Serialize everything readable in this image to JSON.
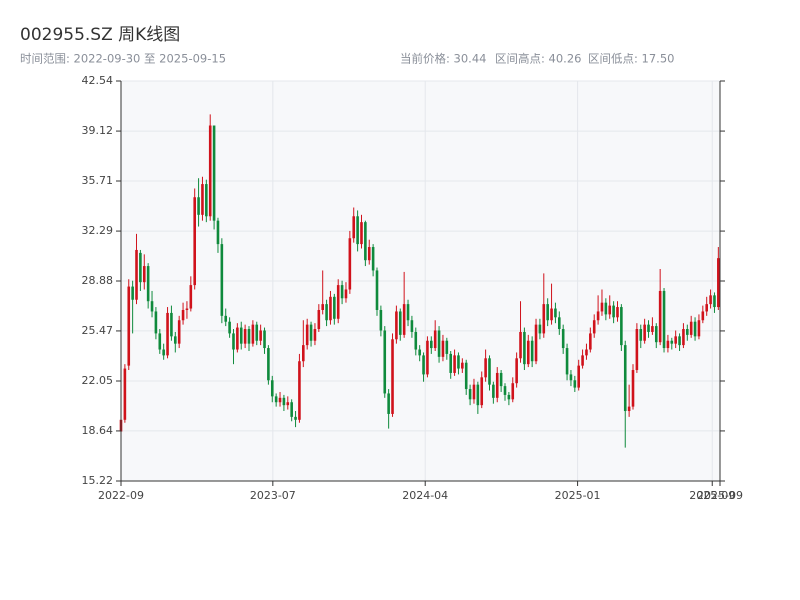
{
  "chart_data": {
    "type": "candlestick",
    "title": "002955.SZ 周K线图",
    "subtitle": "时间范围: 2022-09-30 至 2025-09-15",
    "stats": [
      "当前价格: 30.44",
      "区间高点: 40.26",
      "区间低点: 17.50"
    ],
    "up_color": "#d0121b",
    "down_color": "#0f8a3c",
    "grid": true,
    "ylim": [
      15.22,
      42.54
    ],
    "yticks": [
      15.22,
      18.64,
      22.05,
      25.47,
      28.88,
      32.29,
      35.71,
      39.12,
      42.54
    ],
    "xlim": [
      "2022-09-30",
      "2025-09-15"
    ],
    "xticks": [
      {
        "value": "2022-09-30",
        "label": "2022-09"
      },
      {
        "value": "2023-07-01",
        "label": "2023-07"
      },
      {
        "value": "2024-04-01",
        "label": "2024-04"
      },
      {
        "value": "2025-01-01",
        "label": "2025-01"
      },
      {
        "value": "2025-09-01",
        "label": "2025-09"
      },
      {
        "value": "2025-09-15",
        "label": "2025-09"
      }
    ],
    "x": [
      "2022-09-30",
      "2022-10-07",
      "2022-10-14",
      "2022-10-21",
      "2022-10-28",
      "2022-11-04",
      "2022-11-11",
      "2022-11-18",
      "2022-11-25",
      "2022-12-02",
      "2022-12-09",
      "2022-12-16",
      "2022-12-23",
      "2022-12-30",
      "2023-01-06",
      "2023-01-13",
      "2023-01-20",
      "2023-01-27",
      "2023-02-03",
      "2023-02-10",
      "2023-02-17",
      "2023-02-24",
      "2023-03-03",
      "2023-03-10",
      "2023-03-17",
      "2023-03-24",
      "2023-03-31",
      "2023-04-07",
      "2023-04-14",
      "2023-04-21",
      "2023-04-28",
      "2023-05-05",
      "2023-05-12",
      "2023-05-19",
      "2023-05-26",
      "2023-06-02",
      "2023-06-09",
      "2023-06-16",
      "2023-06-23",
      "2023-06-30",
      "2023-07-07",
      "2023-07-14",
      "2023-07-21",
      "2023-07-28",
      "2023-08-04",
      "2023-08-11",
      "2023-08-18",
      "2023-08-25",
      "2023-09-01",
      "2023-09-08",
      "2023-09-15",
      "2023-09-22",
      "2023-09-29",
      "2023-10-06",
      "2023-10-13",
      "2023-10-20",
      "2023-10-27",
      "2023-11-03",
      "2023-11-10",
      "2023-11-17",
      "2023-11-24",
      "2023-12-01",
      "2023-12-08",
      "2023-12-15",
      "2023-12-22",
      "2023-12-29",
      "2024-01-05",
      "2024-01-12",
      "2024-01-19",
      "2024-01-26",
      "2024-02-02",
      "2024-02-09",
      "2024-02-16",
      "2024-02-23",
      "2024-03-01",
      "2024-03-08",
      "2024-03-15",
      "2024-03-22",
      "2024-03-29",
      "2024-04-05",
      "2024-04-12",
      "2024-04-19",
      "2024-04-26",
      "2024-05-03",
      "2024-05-10",
      "2024-05-17",
      "2024-05-24",
      "2024-05-31",
      "2024-06-07",
      "2024-06-14",
      "2024-06-21",
      "2024-06-28",
      "2024-07-05",
      "2024-07-12",
      "2024-07-19",
      "2024-07-26",
      "2024-08-02",
      "2024-08-09",
      "2024-08-16",
      "2024-08-23",
      "2024-08-30",
      "2024-09-06",
      "2024-09-13",
      "2024-09-20",
      "2024-09-27",
      "2024-10-04",
      "2024-10-11",
      "2024-10-18",
      "2024-10-25",
      "2024-11-01",
      "2024-11-08",
      "2024-11-15",
      "2024-11-22",
      "2024-11-29",
      "2024-12-06",
      "2024-12-13",
      "2024-12-20",
      "2024-12-27",
      "2025-01-03",
      "2025-01-10",
      "2025-01-17",
      "2025-01-24",
      "2025-01-31",
      "2025-02-07",
      "2025-02-14",
      "2025-02-21",
      "2025-02-28",
      "2025-03-07",
      "2025-03-14",
      "2025-03-21",
      "2025-03-28",
      "2025-04-04",
      "2025-04-11",
      "2025-04-18",
      "2025-04-25",
      "2025-05-02",
      "2025-05-09",
      "2025-05-16",
      "2025-05-23",
      "2025-05-30",
      "2025-06-06",
      "2025-06-13",
      "2025-06-20",
      "2025-06-27",
      "2025-07-04",
      "2025-07-11",
      "2025-07-18",
      "2025-07-25",
      "2025-08-01",
      "2025-08-08",
      "2025-08-15",
      "2025-08-22",
      "2025-08-29",
      "2025-09-05",
      "2025-09-12"
    ],
    "ohlc": [
      [
        18.6,
        19.8,
        17.9,
        19.4
      ],
      [
        19.4,
        23.2,
        19.2,
        22.9
      ],
      [
        23.1,
        29.0,
        22.8,
        28.5
      ],
      [
        28.5,
        28.9,
        25.3,
        27.6
      ],
      [
        27.6,
        32.1,
        27.3,
        31.0
      ],
      [
        30.8,
        31.0,
        28.2,
        28.8
      ],
      [
        28.8,
        30.7,
        28.3,
        29.9
      ],
      [
        29.9,
        30.1,
        27.0,
        27.5
      ],
      [
        27.5,
        28.2,
        26.4,
        26.8
      ],
      [
        26.8,
        27.1,
        24.9,
        25.3
      ],
      [
        25.3,
        25.6,
        23.9,
        24.2
      ],
      [
        24.2,
        24.6,
        23.5,
        23.8
      ],
      [
        23.8,
        27.1,
        23.6,
        26.7
      ],
      [
        26.7,
        27.2,
        24.8,
        25.1
      ],
      [
        25.1,
        25.4,
        24.0,
        24.6
      ],
      [
        24.6,
        26.5,
        24.3,
        26.2
      ],
      [
        26.2,
        27.4,
        25.9,
        26.9
      ],
      [
        26.9,
        27.5,
        26.3,
        27.0
      ],
      [
        27.0,
        29.2,
        26.8,
        28.6
      ],
      [
        28.6,
        35.2,
        28.3,
        34.6
      ],
      [
        34.6,
        35.9,
        32.6,
        33.4
      ],
      [
        33.4,
        36.0,
        33.0,
        35.5
      ],
      [
        35.5,
        35.8,
        32.9,
        33.3
      ],
      [
        33.3,
        40.26,
        33.0,
        39.5
      ],
      [
        39.5,
        39.5,
        32.4,
        33.0
      ],
      [
        33.0,
        33.2,
        30.8,
        31.4
      ],
      [
        31.4,
        31.8,
        26.0,
        26.5
      ],
      [
        26.5,
        27.0,
        25.8,
        26.1
      ],
      [
        26.1,
        26.4,
        25.0,
        25.3
      ],
      [
        25.3,
        25.6,
        23.2,
        24.2
      ],
      [
        24.2,
        26.0,
        24.0,
        25.7
      ],
      [
        25.7,
        26.1,
        24.2,
        24.6
      ],
      [
        24.6,
        25.9,
        24.3,
        25.6
      ],
      [
        25.6,
        25.8,
        24.1,
        24.6
      ],
      [
        24.6,
        26.2,
        24.4,
        25.9
      ],
      [
        25.9,
        26.1,
        24.5,
        24.8
      ],
      [
        24.8,
        25.9,
        24.5,
        25.5
      ],
      [
        25.5,
        25.7,
        23.9,
        24.3
      ],
      [
        24.3,
        24.5,
        21.8,
        22.1
      ],
      [
        22.1,
        22.4,
        20.6,
        21.0
      ],
      [
        21.0,
        21.2,
        20.3,
        20.6
      ],
      [
        20.6,
        21.3,
        20.3,
        20.9
      ],
      [
        20.9,
        21.1,
        20.0,
        20.4
      ],
      [
        20.4,
        21.0,
        20.1,
        20.6
      ],
      [
        20.6,
        20.8,
        19.3,
        19.6
      ],
      [
        19.6,
        20.0,
        18.9,
        19.4
      ],
      [
        19.4,
        23.9,
        19.2,
        23.4
      ],
      [
        23.4,
        26.2,
        23.0,
        24.5
      ],
      [
        24.5,
        26.3,
        24.2,
        25.9
      ],
      [
        25.9,
        26.1,
        24.4,
        24.8
      ],
      [
        24.8,
        26.0,
        24.5,
        25.6
      ],
      [
        25.6,
        27.3,
        25.4,
        26.9
      ],
      [
        26.9,
        29.6,
        26.6,
        27.3
      ],
      [
        27.3,
        27.6,
        25.8,
        26.2
      ],
      [
        26.2,
        28.2,
        25.9,
        27.8
      ],
      [
        27.8,
        28.0,
        25.9,
        26.3
      ],
      [
        26.3,
        29.0,
        26.0,
        28.6
      ],
      [
        28.6,
        28.9,
        27.3,
        27.7
      ],
      [
        27.7,
        28.8,
        27.4,
        28.3
      ],
      [
        28.3,
        32.3,
        28.0,
        31.8
      ],
      [
        31.8,
        33.9,
        31.5,
        33.3
      ],
      [
        33.3,
        33.7,
        30.9,
        31.4
      ],
      [
        31.4,
        33.4,
        31.1,
        32.9
      ],
      [
        32.9,
        33.0,
        29.9,
        30.3
      ],
      [
        30.3,
        31.7,
        30.0,
        31.2
      ],
      [
        31.2,
        31.4,
        29.2,
        29.6
      ],
      [
        29.6,
        29.8,
        26.5,
        26.9
      ],
      [
        26.9,
        27.2,
        25.1,
        25.5
      ],
      [
        25.5,
        25.8,
        20.9,
        21.2
      ],
      [
        21.2,
        21.5,
        18.8,
        19.8
      ],
      [
        19.8,
        25.3,
        19.6,
        24.9
      ],
      [
        24.9,
        27.2,
        24.6,
        26.8
      ],
      [
        26.8,
        27.0,
        24.8,
        25.2
      ],
      [
        25.2,
        29.5,
        25.0,
        27.3
      ],
      [
        27.3,
        27.6,
        25.8,
        26.2
      ],
      [
        26.2,
        26.5,
        25.0,
        25.4
      ],
      [
        25.4,
        25.7,
        23.8,
        24.2
      ],
      [
        24.2,
        24.5,
        23.4,
        23.8
      ],
      [
        23.8,
        24.0,
        22.0,
        22.5
      ],
      [
        22.5,
        25.1,
        22.3,
        24.8
      ],
      [
        24.8,
        25.1,
        23.9,
        24.3
      ],
      [
        24.3,
        26.2,
        24.1,
        25.5
      ],
      [
        25.5,
        25.8,
        23.3,
        23.7
      ],
      [
        23.7,
        25.2,
        23.4,
        24.8
      ],
      [
        24.8,
        25.0,
        23.5,
        23.9
      ],
      [
        23.9,
        24.1,
        22.2,
        22.6
      ],
      [
        22.6,
        24.2,
        22.4,
        23.8
      ],
      [
        23.8,
        24.0,
        22.5,
        22.9
      ],
      [
        22.9,
        23.6,
        22.6,
        23.3
      ],
      [
        23.3,
        23.5,
        21.1,
        21.5
      ],
      [
        21.5,
        21.8,
        20.4,
        20.8
      ],
      [
        20.8,
        22.2,
        20.5,
        21.8
      ],
      [
        21.8,
        22.0,
        19.8,
        20.4
      ],
      [
        20.4,
        22.7,
        20.2,
        22.3
      ],
      [
        22.3,
        24.2,
        22.0,
        23.6
      ],
      [
        23.6,
        23.8,
        21.4,
        21.8
      ],
      [
        21.8,
        22.0,
        20.5,
        20.9
      ],
      [
        20.9,
        23.0,
        20.6,
        22.6
      ],
      [
        22.6,
        22.8,
        21.3,
        21.7
      ],
      [
        21.7,
        21.9,
        20.7,
        21.1
      ],
      [
        21.1,
        21.3,
        20.4,
        20.8
      ],
      [
        20.8,
        22.3,
        20.6,
        21.9
      ],
      [
        21.9,
        24.0,
        21.6,
        23.6
      ],
      [
        23.6,
        27.5,
        23.3,
        25.4
      ],
      [
        25.4,
        25.7,
        22.8,
        23.2
      ],
      [
        23.2,
        25.2,
        23.0,
        24.8
      ],
      [
        24.8,
        25.1,
        23.0,
        23.4
      ],
      [
        23.4,
        26.3,
        23.2,
        25.9
      ],
      [
        25.9,
        26.3,
        24.9,
        25.3
      ],
      [
        25.3,
        29.4,
        25.0,
        27.3
      ],
      [
        27.3,
        27.7,
        25.8,
        26.2
      ],
      [
        26.2,
        28.7,
        25.9,
        27.0
      ],
      [
        27.0,
        27.4,
        26.0,
        26.4
      ],
      [
        26.4,
        26.8,
        25.2,
        25.6
      ],
      [
        25.6,
        25.9,
        23.9,
        24.3
      ],
      [
        24.3,
        24.6,
        22.1,
        22.5
      ],
      [
        22.5,
        22.8,
        21.7,
        22.1
      ],
      [
        22.1,
        22.4,
        21.3,
        21.6
      ],
      [
        21.6,
        23.5,
        21.4,
        23.1
      ],
      [
        23.1,
        24.2,
        22.9,
        23.8
      ],
      [
        23.8,
        24.6,
        23.5,
        24.2
      ],
      [
        24.2,
        25.7,
        24.0,
        25.3
      ],
      [
        25.3,
        26.6,
        25.0,
        26.2
      ],
      [
        26.2,
        27.9,
        25.9,
        26.8
      ],
      [
        26.8,
        28.3,
        26.5,
        27.4
      ],
      [
        27.4,
        27.7,
        26.2,
        26.6
      ],
      [
        26.6,
        27.9,
        26.3,
        27.2
      ],
      [
        27.2,
        27.5,
        26.0,
        26.4
      ],
      [
        26.4,
        27.5,
        26.1,
        27.1
      ],
      [
        27.1,
        27.3,
        24.1,
        24.5
      ],
      [
        24.5,
        24.8,
        17.5,
        20.0
      ],
      [
        20.0,
        21.8,
        19.6,
        20.3
      ],
      [
        20.3,
        23.2,
        20.1,
        22.8
      ],
      [
        22.8,
        26.0,
        22.6,
        25.6
      ],
      [
        25.6,
        25.9,
        24.3,
        24.8
      ],
      [
        24.8,
        26.3,
        24.6,
        25.9
      ],
      [
        25.9,
        26.2,
        25.0,
        25.4
      ],
      [
        25.4,
        26.4,
        25.2,
        25.8
      ],
      [
        25.8,
        26.0,
        24.3,
        24.7
      ],
      [
        24.7,
        29.7,
        24.5,
        28.2
      ],
      [
        28.2,
        28.4,
        24.0,
        24.3
      ],
      [
        24.3,
        25.2,
        24.0,
        24.8
      ],
      [
        24.8,
        25.0,
        24.2,
        24.6
      ],
      [
        24.6,
        25.5,
        24.3,
        25.1
      ],
      [
        25.1,
        25.3,
        24.1,
        24.5
      ],
      [
        24.5,
        26.0,
        24.3,
        25.6
      ],
      [
        25.6,
        25.9,
        24.8,
        25.2
      ],
      [
        25.2,
        26.5,
        25.0,
        26.1
      ],
      [
        26.1,
        26.4,
        24.8,
        25.1
      ],
      [
        25.1,
        26.6,
        24.9,
        26.2
      ],
      [
        26.2,
        27.2,
        26.0,
        26.8
      ],
      [
        26.8,
        27.8,
        26.5,
        27.3
      ],
      [
        27.3,
        28.3,
        27.0,
        27.9
      ],
      [
        27.9,
        28.1,
        26.7,
        27.1
      ],
      [
        27.1,
        31.2,
        26.9,
        30.44
      ]
    ]
  }
}
